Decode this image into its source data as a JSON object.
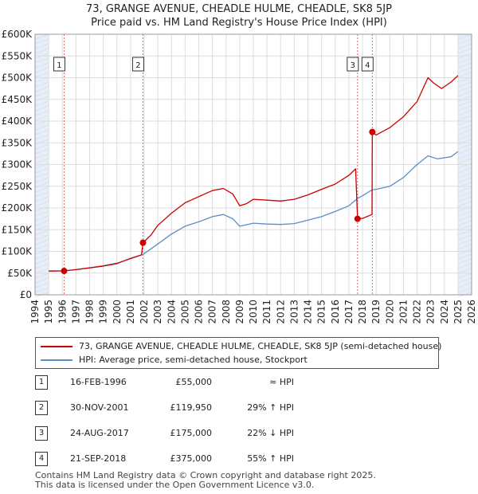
{
  "header": {
    "title_line1": "73, GRANGE AVENUE, CHEADLE HULME, CHEADLE, SK8 5JP",
    "title_line2": "Price paid vs. HM Land Registry's House Price Index (HPI)"
  },
  "colors": {
    "property": "#cc0000",
    "hpi": "#5b8ec8",
    "grid": "#dddddd",
    "shade": "#e8eef7",
    "marker_line": "#e06666"
  },
  "legend": {
    "property_label": "73, GRANGE AVENUE, CHEADLE HULME, CHEADLE, SK8 5JP (semi-detached house)",
    "hpi_label": "HPI: Average price, semi-detached house, Stockport"
  },
  "sales": [
    {
      "num": "1",
      "date": "16-FEB-1996",
      "price": "£55,000",
      "hpi": "≈ HPI"
    },
    {
      "num": "2",
      "date": "30-NOV-2001",
      "price": "£119,950",
      "hpi": "29% ↑ HPI"
    },
    {
      "num": "3",
      "date": "24-AUG-2017",
      "price": "£175,000",
      "hpi": "22% ↓ HPI"
    },
    {
      "num": "4",
      "date": "21-SEP-2018",
      "price": "£375,000",
      "hpi": "55% ↑ HPI"
    }
  ],
  "footer": {
    "line1": "Contains HM Land Registry data © Crown copyright and database right 2025.",
    "line2": "This data is licensed under the Open Government Licence v3.0."
  },
  "chart_data": {
    "type": "line",
    "title": "73, GRANGE AVENUE, CHEADLE HULME, CHEADLE, SK8 5JP — Price paid vs. HM Land Registry's House Price Index (HPI)",
    "xlabel": "",
    "ylabel": "",
    "xlim": [
      1994,
      2026
    ],
    "ylim": [
      0,
      600000
    ],
    "xticks": [
      1994,
      1995,
      1996,
      1997,
      1998,
      1999,
      2000,
      2001,
      2002,
      2003,
      2004,
      2005,
      2006,
      2007,
      2008,
      2009,
      2010,
      2011,
      2012,
      2013,
      2014,
      2015,
      2016,
      2017,
      2018,
      2019,
      2020,
      2021,
      2022,
      2023,
      2024,
      2025,
      2026
    ],
    "yticks": [
      {
        "value": 0,
        "label": "£0"
      },
      {
        "value": 50000,
        "label": "£50K"
      },
      {
        "value": 100000,
        "label": "£100K"
      },
      {
        "value": 150000,
        "label": "£150K"
      },
      {
        "value": 200000,
        "label": "£200K"
      },
      {
        "value": 250000,
        "label": "£250K"
      },
      {
        "value": 300000,
        "label": "£300K"
      },
      {
        "value": 350000,
        "label": "£350K"
      },
      {
        "value": 400000,
        "label": "£400K"
      },
      {
        "value": 450000,
        "label": "£450K"
      },
      {
        "value": 500000,
        "label": "£500K"
      },
      {
        "value": 550000,
        "label": "£550K"
      },
      {
        "value": 600000,
        "label": "£600K"
      }
    ],
    "shaded_ranges": [
      [
        1994,
        1995
      ],
      [
        2025,
        2026
      ]
    ],
    "series": [
      {
        "name": "73, GRANGE AVENUE, CHEADLE HULME, CHEADLE, SK8 5JP (semi-detached house)",
        "color": "#cc0000",
        "points": [
          [
            1995.0,
            55000
          ],
          [
            1996.13,
            55000
          ],
          [
            1997.0,
            58000
          ],
          [
            1998.0,
            62000
          ],
          [
            1999.0,
            66000
          ],
          [
            2000.0,
            72000
          ],
          [
            2001.0,
            84000
          ],
          [
            2001.8,
            92000
          ],
          [
            2001.91,
            119950
          ],
          [
            2002.5,
            138000
          ],
          [
            2003.0,
            160000
          ],
          [
            2004.0,
            188000
          ],
          [
            2005.0,
            212000
          ],
          [
            2006.0,
            226000
          ],
          [
            2007.0,
            240000
          ],
          [
            2007.8,
            245000
          ],
          [
            2008.5,
            232000
          ],
          [
            2009.0,
            205000
          ],
          [
            2009.5,
            210000
          ],
          [
            2010.0,
            220000
          ],
          [
            2011.0,
            218000
          ],
          [
            2012.0,
            216000
          ],
          [
            2013.0,
            220000
          ],
          [
            2014.0,
            230000
          ],
          [
            2015.0,
            243000
          ],
          [
            2016.0,
            255000
          ],
          [
            2017.0,
            275000
          ],
          [
            2017.5,
            290000
          ],
          [
            2017.64,
            175000
          ],
          [
            2018.0,
            176000
          ],
          [
            2018.7,
            185000
          ],
          [
            2018.72,
            375000
          ],
          [
            2019.0,
            368000
          ],
          [
            2020.0,
            385000
          ],
          [
            2021.0,
            410000
          ],
          [
            2022.0,
            445000
          ],
          [
            2022.8,
            500000
          ],
          [
            2023.2,
            488000
          ],
          [
            2023.8,
            475000
          ],
          [
            2024.5,
            490000
          ],
          [
            2025.0,
            505000
          ]
        ]
      },
      {
        "name": "HPI: Average price, semi-detached house, Stockport",
        "color": "#5b8ec8",
        "points": [
          [
            1995.0,
            54000
          ],
          [
            1996.0,
            55000
          ],
          [
            1997.0,
            58000
          ],
          [
            1998.0,
            62000
          ],
          [
            1999.0,
            67000
          ],
          [
            2000.0,
            73000
          ],
          [
            2001.0,
            83000
          ],
          [
            2001.91,
            93000
          ],
          [
            2003.0,
            117000
          ],
          [
            2004.0,
            140000
          ],
          [
            2005.0,
            158000
          ],
          [
            2006.0,
            168000
          ],
          [
            2007.0,
            180000
          ],
          [
            2007.8,
            185000
          ],
          [
            2008.5,
            175000
          ],
          [
            2009.0,
            158000
          ],
          [
            2010.0,
            165000
          ],
          [
            2011.0,
            163000
          ],
          [
            2012.0,
            162000
          ],
          [
            2013.0,
            164000
          ],
          [
            2014.0,
            172000
          ],
          [
            2015.0,
            180000
          ],
          [
            2016.0,
            192000
          ],
          [
            2017.0,
            205000
          ],
          [
            2017.64,
            222000
          ],
          [
            2018.0,
            228000
          ],
          [
            2018.72,
            242000
          ],
          [
            2019.0,
            243000
          ],
          [
            2020.0,
            250000
          ],
          [
            2021.0,
            270000
          ],
          [
            2022.0,
            300000
          ],
          [
            2022.8,
            320000
          ],
          [
            2023.5,
            313000
          ],
          [
            2024.5,
            318000
          ],
          [
            2025.0,
            330000
          ]
        ]
      }
    ],
    "sale_markers": [
      {
        "label": "1",
        "x": 1996.13,
        "y": 55000
      },
      {
        "label": "2",
        "x": 2001.91,
        "y": 119950
      },
      {
        "label": "3",
        "x": 2017.64,
        "y": 175000
      },
      {
        "label": "4",
        "x": 2018.72,
        "y": 375000
      }
    ]
  }
}
